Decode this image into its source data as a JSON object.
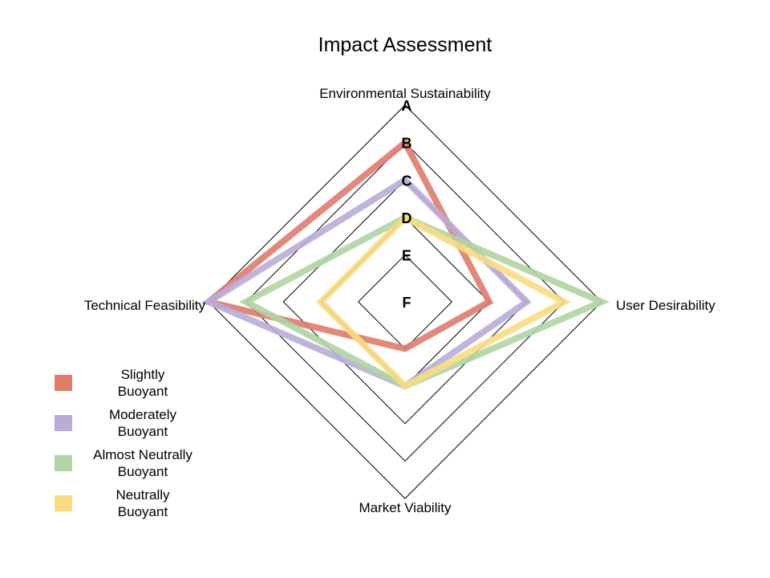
{
  "chart_data": {
    "type": "radar",
    "title": "Impact Assessment",
    "axes": [
      "Environmental Sustainability",
      "User Desirability",
      "Market Viability",
      "Technical Feasibility"
    ],
    "grades": [
      "A",
      "B",
      "C",
      "D",
      "E",
      "F"
    ],
    "series": [
      {
        "name": "Slightly\nBuoyant",
        "color": "#e07b6a",
        "values": [
          "B",
          "D",
          "E",
          "A"
        ]
      },
      {
        "name": "Moderately\nBuoyant",
        "color": "#b9acda",
        "values": [
          "C",
          "C",
          "D",
          "A"
        ]
      },
      {
        "name": "Almost Neutrally\nBuoyant",
        "color": "#aed5a2",
        "values": [
          "D",
          "A",
          "D",
          "B"
        ]
      },
      {
        "name": "Neutrally\nBuoyant",
        "color": "#fbdc7e",
        "values": [
          "D",
          "B",
          "D",
          "D"
        ]
      }
    ],
    "grid": true,
    "legend_position": "bottom-left"
  }
}
